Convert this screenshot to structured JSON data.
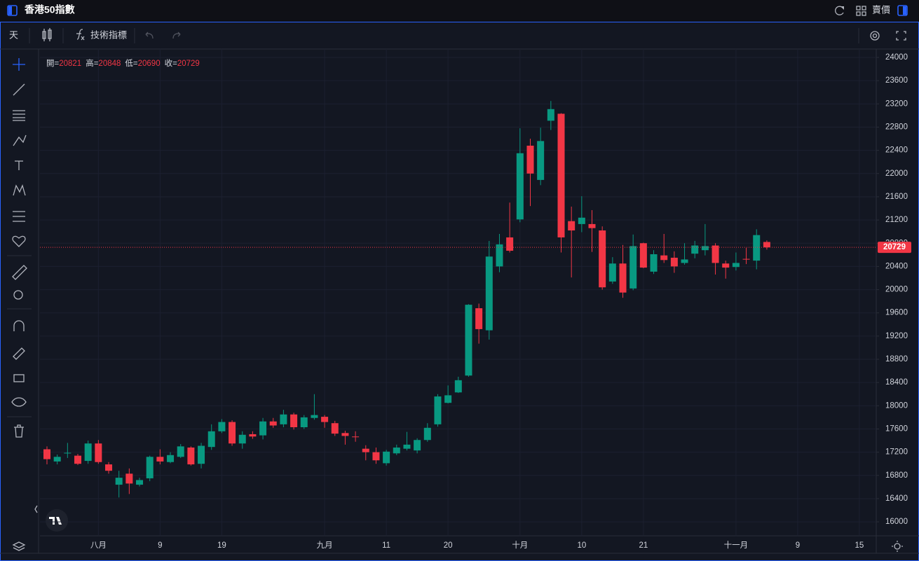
{
  "header": {
    "title": "香港50指數",
    "price_type": "賣價"
  },
  "toolbar": {
    "interval": "天",
    "indicators": "技術指標"
  },
  "chart_data": {
    "type": "candlestick",
    "categories": [
      null,
      null,
      null,
      null,
      null,
      "八月",
      null,
      null,
      null,
      null,
      null,
      "9",
      null,
      null,
      null,
      null,
      null,
      "19",
      null,
      null,
      null,
      null,
      null,
      null,
      null,
      null,
      null,
      "九月",
      null,
      null,
      null,
      null,
      null,
      "11",
      null,
      null,
      null,
      null,
      null,
      "20",
      null,
      null,
      null,
      null,
      null,
      null,
      "十月",
      null,
      null,
      null,
      null,
      null,
      "10",
      null,
      null,
      null,
      null,
      null,
      "21",
      null,
      null,
      null,
      null,
      null,
      null,
      null,
      null,
      "十一月",
      null,
      null,
      null,
      null,
      null,
      "9",
      null,
      null,
      null,
      null,
      null,
      "15",
      null
    ],
    "open": [
      17250,
      17040,
      17180,
      17140,
      17050,
      17350,
      16990,
      16640,
      16830,
      16640,
      16750,
      17120,
      17030,
      17120,
      17280,
      17000,
      17290,
      17560,
      17720,
      17350,
      17510,
      17490,
      17730,
      17680,
      17850,
      17630,
      17790,
      17810,
      17700,
      17530,
      17470,
      17260,
      17200,
      17010,
      17180,
      17260,
      17230,
      17410,
      17680,
      18050,
      18230,
      18520,
      19680,
      19300,
      20400,
      20900,
      21210,
      22480,
      21890,
      22910,
      23030,
      21180,
      21130,
      21130,
      21020,
      20140,
      20450,
      20020,
      20800,
      20310,
      20590,
      20550,
      20460,
      20620,
      20680,
      20760,
      20450,
      20390,
      20530,
      20500,
      20821,
      null,
      null,
      null,
      null,
      null,
      null,
      null,
      null,
      null,
      null
    ],
    "high": [
      17300,
      17160,
      17360,
      17170,
      17400,
      17410,
      17030,
      16880,
      16920,
      16760,
      17140,
      17250,
      17200,
      17340,
      17300,
      17360,
      17680,
      17770,
      17750,
      17560,
      17560,
      17790,
      17790,
      17930,
      17880,
      17840,
      18200,
      17840,
      17740,
      17570,
      17560,
      17320,
      17280,
      17240,
      17330,
      17550,
      17440,
      17700,
      18200,
      18350,
      18500,
      19750,
      19760,
      20840,
      20960,
      21500,
      22780,
      22600,
      22790,
      23250,
      23040,
      21430,
      21610,
      21370,
      21090,
      20560,
      20770,
      20950,
      20810,
      20680,
      20960,
      20660,
      20800,
      20840,
      21130,
      20800,
      20500,
      20640,
      20720,
      21040,
      20848,
      null,
      null,
      null,
      null,
      null,
      null,
      null,
      null,
      null,
      null
    ],
    "low": [
      16990,
      16990,
      17100,
      16980,
      17000,
      17000,
      16830,
      16420,
      16480,
      16610,
      16700,
      16990,
      17010,
      17100,
      16970,
      16920,
      17240,
      17530,
      17310,
      17260,
      17430,
      17420,
      17620,
      17630,
      17590,
      17600,
      17760,
      17620,
      17480,
      17330,
      17380,
      17060,
      17000,
      16970,
      17150,
      17230,
      17180,
      17380,
      17640,
      18040,
      18220,
      18500,
      19070,
      19140,
      20300,
      20640,
      21160,
      21440,
      21800,
      22750,
      20640,
      20210,
      20990,
      20650,
      20000,
      20100,
      19860,
      19990,
      20370,
      20270,
      20460,
      20290,
      20430,
      20540,
      20590,
      20260,
      20190,
      20330,
      20440,
      20350,
      20690,
      null,
      null,
      null,
      null,
      null,
      null,
      null,
      null,
      null,
      null
    ],
    "close": [
      17080,
      17120,
      17190,
      17000,
      17350,
      17030,
      16880,
      16760,
      16660,
      16720,
      17120,
      17040,
      17150,
      17300,
      16990,
      17310,
      17560,
      17720,
      17350,
      17500,
      17470,
      17730,
      17660,
      17850,
      17630,
      17800,
      17840,
      17720,
      17520,
      17480,
      17460,
      17200,
      17060,
      17210,
      17280,
      17330,
      17410,
      17620,
      18160,
      18180,
      18440,
      19740,
      19320,
      20570,
      20780,
      20670,
      22350,
      22000,
      22560,
      23110,
      20900,
      21020,
      21240,
      21060,
      20040,
      20450,
      19950,
      20750,
      20380,
      20610,
      20510,
      20400,
      20520,
      20760,
      20750,
      20460,
      20380,
      20460,
      20520,
      20940,
      20729,
      null,
      null,
      null,
      null,
      null,
      null,
      null,
      null,
      null,
      null
    ],
    "up_color": "#089981",
    "down_color": "#f23645",
    "ohlc_labels": [
      "開=",
      "高=",
      "低=",
      "收="
    ],
    "ylim": [
      15760,
      24145
    ],
    "yticks": [
      16000,
      16400,
      16800,
      17200,
      17600,
      18000,
      18400,
      18800,
      19200,
      19600,
      20000,
      20400,
      20800,
      21200,
      21600,
      22000,
      22400,
      22800,
      23200,
      23600,
      24000
    ],
    "grid": true
  }
}
